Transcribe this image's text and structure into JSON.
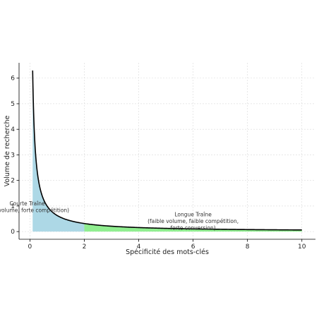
{
  "chart_data": {
    "type": "area",
    "xlabel": "Spécificité des mots-clés",
    "ylabel": "Volume de recherche",
    "xlim": [
      -0.4,
      10.5
    ],
    "ylim": [
      -0.3,
      6.6
    ],
    "xticks": [
      0,
      2,
      4,
      6,
      8,
      10
    ],
    "yticks": [
      0,
      1,
      2,
      3,
      4,
      5,
      6
    ],
    "grid": true,
    "curve": {
      "formula": "y = 0.63 / x",
      "x_start": 0.1,
      "x_end": 10,
      "color": "#000000"
    },
    "regions": [
      {
        "x_range": [
          0.1,
          2
        ],
        "color": "#add8e6",
        "annotation": [
          "Courte Traîne",
          "(fort volume, forte compétition)"
        ],
        "annotation_at": {
          "x": -0.1,
          "y": 0.9
        }
      },
      {
        "x_range": [
          2,
          10
        ],
        "color": "#90ee90",
        "annotation": [
          "Longue Traîne",
          "(faible volume, faible compétition,",
          "forte conversion)"
        ],
        "annotation_at": {
          "x": 6,
          "y": 0.35
        }
      }
    ]
  }
}
